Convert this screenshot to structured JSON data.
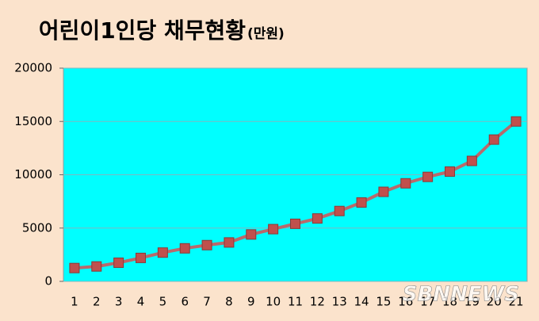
{
  "chart_data": {
    "type": "line",
    "title": "어린이1인당 채무현황",
    "unit_label": "(만원)",
    "categories": [
      "1",
      "2",
      "3",
      "4",
      "5",
      "6",
      "7",
      "8",
      "9",
      "10",
      "11",
      "12",
      "13",
      "14",
      "15",
      "16",
      "17",
      "18",
      "19",
      "20",
      "21"
    ],
    "series": [
      {
        "name": "어린이1인당 채무",
        "color": "#c0504d",
        "line_color": "#b86a6c",
        "values": [
          1250,
          1400,
          1750,
          2200,
          2700,
          3100,
          3400,
          3650,
          4400,
          4900,
          5400,
          5900,
          6600,
          7400,
          8400,
          9200,
          9800,
          10300,
          11300,
          13300,
          15000
        ]
      }
    ],
    "ylim": [
      0,
      20000
    ],
    "yticks": [
      0,
      5000,
      10000,
      15000,
      20000
    ],
    "grid": true,
    "plot_color": "#00ffff",
    "watermark": "SBNNEWS"
  }
}
